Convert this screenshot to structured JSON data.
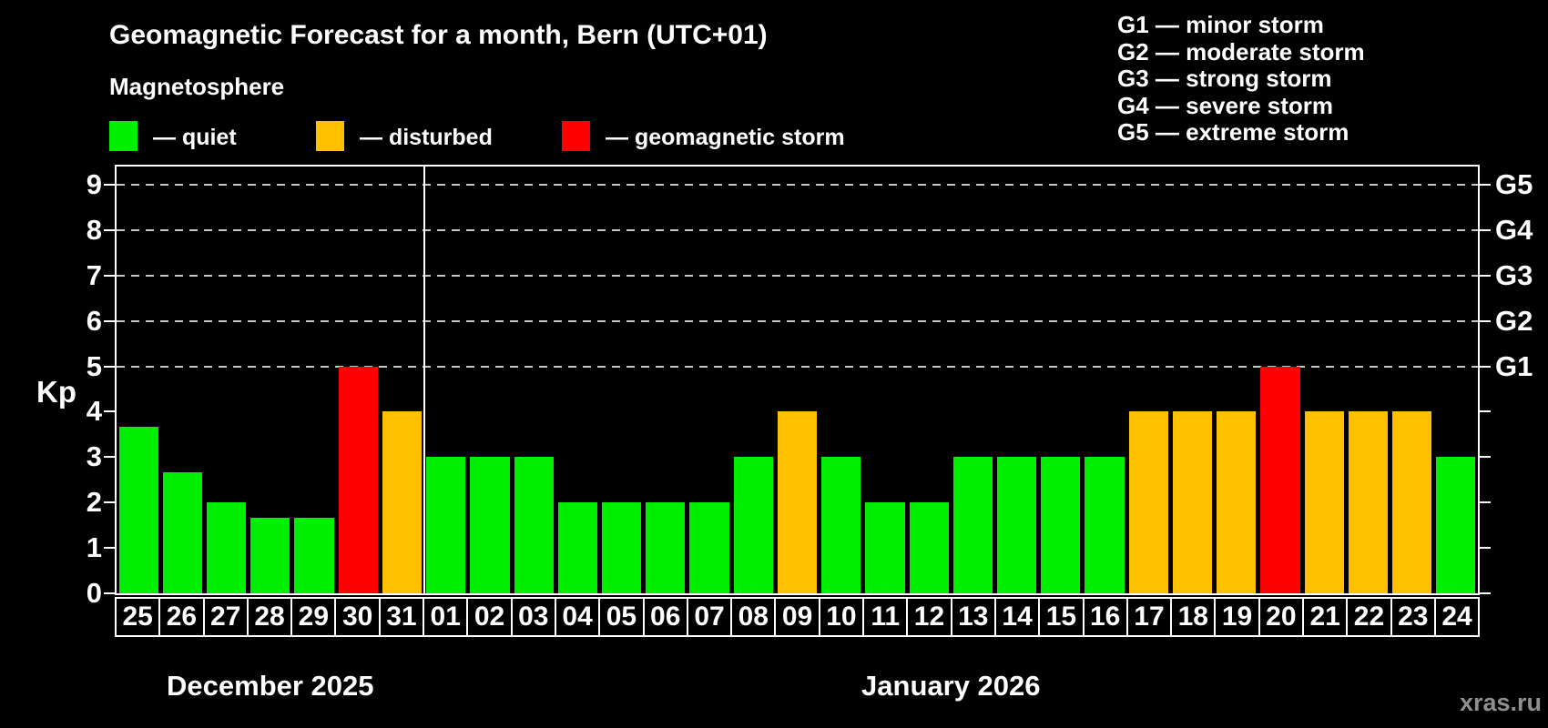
{
  "header": {
    "title": "Geomagnetic Forecast for a month, Bern (UTC+01)",
    "subtitle": "Magnetosphere"
  },
  "legend": {
    "items": [
      {
        "key": "quiet",
        "label": "— quiet",
        "color": "#00ee00"
      },
      {
        "key": "disturbed",
        "label": "— disturbed",
        "color": "#ffc000"
      },
      {
        "key": "storm",
        "label": "— geomagnetic storm",
        "color": "#ff0000"
      }
    ]
  },
  "storm_scale": {
    "lines": [
      "G1 — minor storm",
      "G2 — moderate storm",
      "G3 — strong storm",
      "G4 — severe storm",
      "G5 — extreme storm"
    ]
  },
  "axis": {
    "y_left_title": "Kp"
  },
  "watermark": "xras.ru",
  "chart_data": {
    "type": "bar",
    "title": "Geomagnetic Forecast for a month, Bern (UTC+01)",
    "subtitle": "Magnetosphere",
    "ylabel": "Kp",
    "ylim": [
      0,
      9.4
    ],
    "y_ticks": [
      0,
      1,
      2,
      3,
      4,
      5,
      6,
      7,
      8,
      9
    ],
    "grid": "dashed horizontal lines at Kp 5-9 only",
    "gridline_levels": [
      5,
      6,
      7,
      8,
      9
    ],
    "right_axis_labels": [
      {
        "kp": 5,
        "label": "G1"
      },
      {
        "kp": 6,
        "label": "G2"
      },
      {
        "kp": 7,
        "label": "G3"
      },
      {
        "kp": 8,
        "label": "G4"
      },
      {
        "kp": 9,
        "label": "G5"
      }
    ],
    "categories": [
      "25",
      "26",
      "27",
      "28",
      "29",
      "30",
      "31",
      "01",
      "02",
      "03",
      "04",
      "05",
      "06",
      "07",
      "08",
      "09",
      "10",
      "11",
      "12",
      "13",
      "14",
      "15",
      "16",
      "17",
      "18",
      "19",
      "20",
      "21",
      "22",
      "23",
      "24"
    ],
    "values": [
      3.67,
      2.67,
      2,
      1.67,
      1.67,
      5,
      4,
      3,
      3,
      3,
      2,
      2,
      2,
      2,
      3,
      4,
      3,
      2,
      2,
      3,
      3,
      3,
      3,
      4,
      4,
      4,
      5,
      4,
      4,
      4,
      3
    ],
    "statuses": [
      "quiet",
      "quiet",
      "quiet",
      "quiet",
      "quiet",
      "storm",
      "disturbed",
      "quiet",
      "quiet",
      "quiet",
      "quiet",
      "quiet",
      "quiet",
      "quiet",
      "quiet",
      "disturbed",
      "quiet",
      "quiet",
      "quiet",
      "quiet",
      "quiet",
      "quiet",
      "quiet",
      "disturbed",
      "disturbed",
      "disturbed",
      "storm",
      "disturbed",
      "disturbed",
      "disturbed",
      "quiet"
    ],
    "status_colors": {
      "quiet": "#00ee00",
      "disturbed": "#ffc000",
      "storm": "#ff0000"
    },
    "months": [
      {
        "label": "December 2025",
        "days": 7
      },
      {
        "label": "January 2026",
        "days": 24
      }
    ],
    "legend_position": "top-left"
  }
}
